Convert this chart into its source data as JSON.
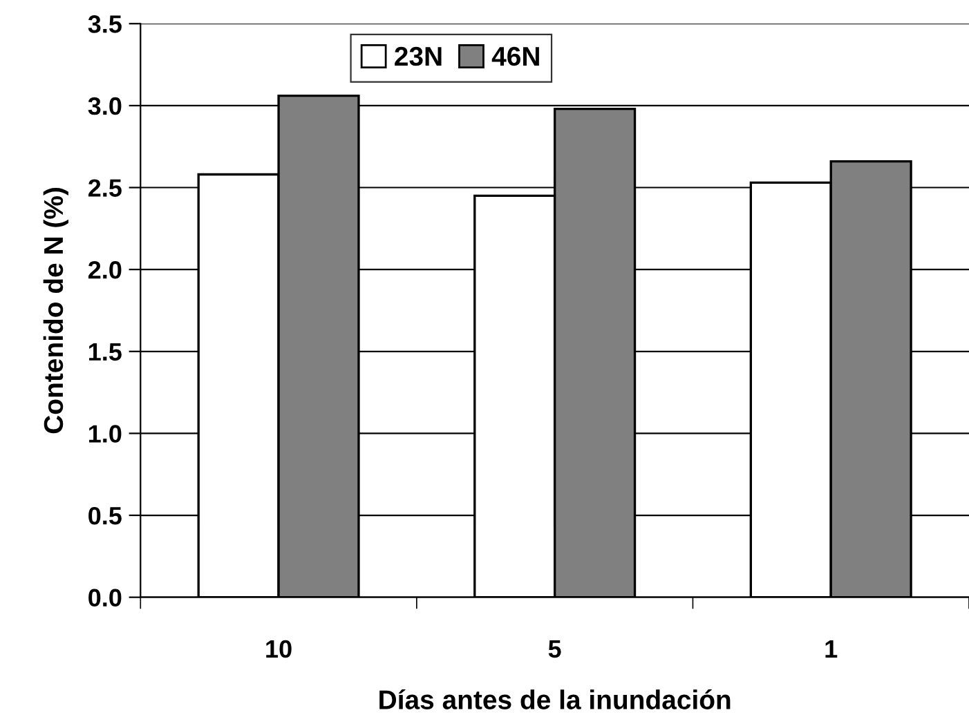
{
  "chart_data": {
    "type": "bar",
    "xlabel": "Días antes de la inundación",
    "ylabel": "Contenido de N (%)",
    "categories": [
      "10",
      "5",
      "1"
    ],
    "series": [
      {
        "name": "23N",
        "color": "#ffffff",
        "values": [
          2.58,
          2.45,
          2.53
        ]
      },
      {
        "name": "46N",
        "color": "#808080",
        "values": [
          3.06,
          2.98,
          2.66
        ]
      }
    ],
    "ylim": [
      0,
      3.5
    ],
    "yticks": [
      {
        "value": 0,
        "label": "0.0"
      },
      {
        "value": 0.5,
        "label": "0.5"
      },
      {
        "value": 1,
        "label": "1.0"
      },
      {
        "value": 1.5,
        "label": "1.5"
      },
      {
        "value": 2,
        "label": "2.0"
      },
      {
        "value": 2.5,
        "label": "2.5"
      },
      {
        "value": 3,
        "label": "3.0"
      },
      {
        "value": 3.5,
        "label": "3.5"
      }
    ],
    "grid": "y",
    "legend": "top"
  }
}
